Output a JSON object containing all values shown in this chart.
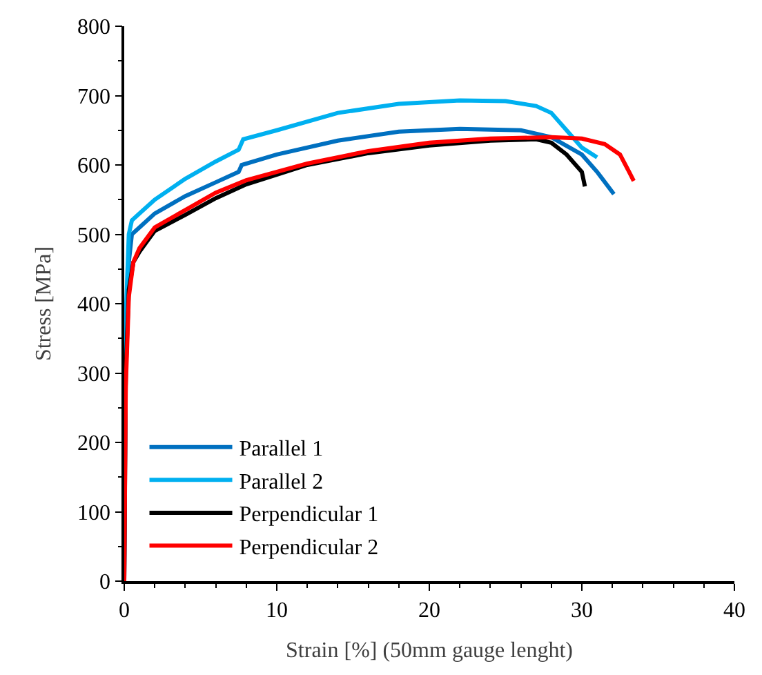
{
  "chart_data": {
    "type": "line",
    "xlabel": "Strain [%] (50mm gauge lenght)",
    "ylabel": "Stress [MPa]",
    "xlim": [
      0,
      40
    ],
    "ylim": [
      0,
      800
    ],
    "xticks": [
      0,
      10,
      20,
      30,
      40
    ],
    "yticks": [
      0,
      100,
      200,
      300,
      400,
      500,
      600,
      700,
      800
    ],
    "grid": false,
    "legend": "bottom left",
    "marker": "none",
    "line_style": "solid",
    "series": [
      {
        "name": "Parallel 1",
        "color": "#0070c0",
        "x": [
          0,
          0.1,
          0.3,
          0.5,
          1,
          2,
          4,
          6,
          7.5,
          7.7,
          10,
          14,
          18,
          22,
          26,
          28,
          30,
          31,
          32.1
        ],
        "values": [
          0,
          350,
          460,
          500,
          510,
          530,
          555,
          575,
          590,
          600,
          615,
          635,
          648,
          652,
          650,
          640,
          615,
          590,
          558
        ]
      },
      {
        "name": "Parallel 2",
        "color": "#00b0f0",
        "x": [
          0,
          0.1,
          0.3,
          0.5,
          1,
          2,
          4,
          6,
          7.5,
          7.8,
          10,
          14,
          18,
          22,
          25,
          27,
          28,
          29,
          30,
          31
        ],
        "values": [
          0,
          380,
          500,
          520,
          530,
          550,
          580,
          605,
          622,
          637,
          650,
          675,
          688,
          693,
          692,
          685,
          675,
          650,
          625,
          611
        ]
      },
      {
        "name": "Perpendicular 1",
        "color": "#000000",
        "x": [
          0,
          0.1,
          0.3,
          0.6,
          1,
          1.5,
          2,
          4,
          6,
          8,
          12,
          16,
          20,
          24,
          27,
          28,
          29,
          30,
          30.2
        ],
        "values": [
          0,
          300,
          420,
          460,
          475,
          490,
          505,
          528,
          552,
          572,
          600,
          617,
          628,
          635,
          637,
          632,
          615,
          590,
          569
        ]
      },
      {
        "name": "Perpendicular 2",
        "color": "#ff0000",
        "x": [
          0,
          0.1,
          0.3,
          0.6,
          1,
          2,
          4,
          6,
          8,
          12,
          16,
          20,
          24,
          28,
          30,
          31.5,
          32.5,
          33.1,
          33.4
        ],
        "values": [
          0,
          280,
          410,
          460,
          480,
          510,
          535,
          560,
          578,
          602,
          620,
          632,
          638,
          640,
          638,
          630,
          615,
          590,
          577
        ]
      }
    ]
  }
}
